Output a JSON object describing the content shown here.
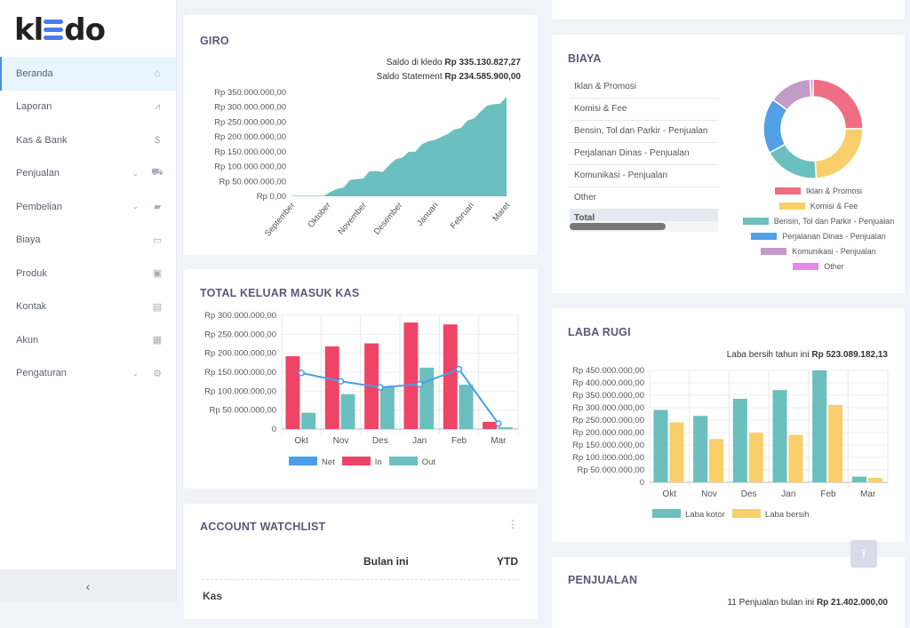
{
  "brand": {
    "logo": "kledo"
  },
  "sidebar": {
    "items": [
      {
        "label": "Beranda",
        "icon": "home-icon",
        "glyph": "⌂",
        "active": true
      },
      {
        "label": "Laporan",
        "icon": "chart-line-icon",
        "glyph": "⩘"
      },
      {
        "label": "Kas & Bank",
        "icon": "dollar-icon",
        "glyph": "$"
      },
      {
        "label": "Penjualan",
        "icon": "basket-icon",
        "glyph": "⛟",
        "chevron": true
      },
      {
        "label": "Pembelian",
        "icon": "shopping-bag-icon",
        "glyph": "▰",
        "chevron": true
      },
      {
        "label": "Biaya",
        "icon": "credit-card-icon",
        "glyph": "▭"
      },
      {
        "label": "Produk",
        "icon": "box-icon",
        "glyph": "▣"
      },
      {
        "label": "Kontak",
        "icon": "contact-card-icon",
        "glyph": "▤"
      },
      {
        "label": "Akun",
        "icon": "list-icon",
        "glyph": "▦"
      },
      {
        "label": "Pengaturan",
        "icon": "gears-icon",
        "glyph": "⚙",
        "chevron": true
      }
    ],
    "collapse_glyph": "‹"
  },
  "giro": {
    "title": "GIRO",
    "saldo_kledo_label": "Saldo di kledo",
    "saldo_kledo": "Rp 335.130.827,27",
    "saldo_statement_label": "Saldo Statement",
    "saldo_statement": "Rp 234.585.900,00"
  },
  "kas": {
    "title": "TOTAL KELUAR MASUK KAS"
  },
  "watchlist": {
    "title": "ACCOUNT WATCHLIST",
    "menu": "⋮",
    "col1": "Bulan ini",
    "col2": "YTD",
    "row1": "Kas"
  },
  "biaya": {
    "title": "BIAYA",
    "rows": [
      "Iklan & Promosi",
      "Komisi & Fee",
      "Bensin, Tol dan Parkir - Penjualan",
      "Perjalanan Dinas - Penjualan",
      "Komunikasi - Penjualan",
      "Other"
    ],
    "total": "Total"
  },
  "laba": {
    "title": "LABA RUGI",
    "summary_label": "Laba bersih tahun ini",
    "summary_value": "Rp 523.089.182,13"
  },
  "penjualan": {
    "title": "PENJUALAN",
    "summary_label": "11 Penjualan bulan ini",
    "summary_value": "Rp 21.402.000,00"
  },
  "scroll_top_glyph": "⭱",
  "chart_data": [
    {
      "id": "giro",
      "type": "area",
      "color": "#6bbfbf",
      "x_labels": [
        "September",
        "Oktober",
        "November",
        "Desember",
        "Januari",
        "Februari",
        "Maret"
      ],
      "yticks": [
        "Rp 0,00",
        "Rp 50.000.000,00",
        "Rp 100.000.000,00",
        "Rp 150.000.000,00",
        "Rp 200.000.000,00",
        "Rp 250.000.000,00",
        "Rp 300.000.000,00",
        "Rp 350.000.000,00"
      ],
      "ylim": [
        0,
        350000000
      ],
      "values": [
        2000000,
        2000000,
        2000000,
        2000000,
        2000000,
        2000000,
        15000000,
        25000000,
        30000000,
        55000000,
        58000000,
        60000000,
        85000000,
        85000000,
        82000000,
        105000000,
        125000000,
        130000000,
        150000000,
        150000000,
        175000000,
        185000000,
        190000000,
        200000000,
        210000000,
        225000000,
        230000000,
        255000000,
        262000000,
        285000000,
        305000000,
        310000000,
        312000000,
        335000000
      ]
    },
    {
      "id": "kas",
      "type": "bar",
      "categories": [
        "Okt",
        "Nov",
        "Des",
        "Jan",
        "Feb",
        "Mar"
      ],
      "yticks": [
        "0",
        "Rp 50.000.000,00",
        "Rp 100.000.000,00",
        "Rp 150.000.000,00",
        "Rp 200.000.000,00",
        "Rp 250.000.000,00",
        "Rp 300.000.000,00"
      ],
      "ylim": [
        0,
        300000000
      ],
      "series": [
        {
          "name": "In",
          "color": "#ee4466",
          "values": [
            192000000,
            218000000,
            226000000,
            281000000,
            276000000,
            19000000
          ]
        },
        {
          "name": "Out",
          "color": "#6bbfbf",
          "values": [
            43000000,
            92000000,
            113000000,
            162000000,
            117000000,
            5000000
          ]
        }
      ],
      "line": {
        "name": "Net",
        "color": "#4a9ee8",
        "values": [
          148000000,
          126000000,
          110000000,
          118000000,
          158000000,
          14000000
        ]
      },
      "legend": [
        "Net",
        "In",
        "Out"
      ]
    },
    {
      "id": "laba",
      "type": "bar",
      "categories": [
        "Okt",
        "Nov",
        "Des",
        "Jan",
        "Feb",
        "Mar"
      ],
      "yticks": [
        "0",
        "Rp 50.000.000,00",
        "Rp 100.000.000,00",
        "Rp 150.000.000,00",
        "Rp 200.000.000,00",
        "Rp 250.000.000,00",
        "Rp 300.000.000,00",
        "Rp 350.000.000,00",
        "Rp 400.000.000,00",
        "Rp 450.000.000,00"
      ],
      "ylim": [
        0,
        450000000
      ],
      "series": [
        {
          "name": "Laba kotor",
          "color": "#6bbfbf",
          "values": [
            291000000,
            267000000,
            336000000,
            371000000,
            450000000,
            23000000
          ]
        },
        {
          "name": "Laba bersih",
          "color": "#f8cf6a",
          "values": [
            241000000,
            174000000,
            199000000,
            191000000,
            311000000,
            18000000
          ]
        }
      ]
    },
    {
      "id": "biaya",
      "type": "pie",
      "donut": true,
      "labels": [
        "Iklan & Promosi",
        "Komisi & Fee",
        "Bensin, Tol dan Parkir - Penjualan",
        "Perjalanan Dinas - Penjualan",
        "Komunikasi - Penjualan",
        "Other"
      ],
      "values": [
        25,
        24,
        18,
        18,
        14,
        1
      ],
      "colors": [
        "#ee6e84",
        "#f8cf6a",
        "#6bbfbf",
        "#52a0e6",
        "#c39bc8",
        "#e38be6"
      ]
    }
  ]
}
